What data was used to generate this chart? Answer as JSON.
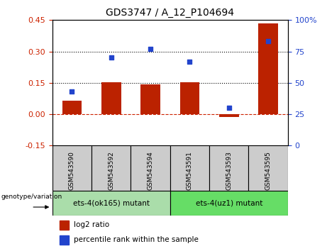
{
  "title": "GDS3747 / A_12_P104694",
  "samples": [
    "GSM543590",
    "GSM543592",
    "GSM543594",
    "GSM543591",
    "GSM543593",
    "GSM543595"
  ],
  "log2_ratio": [
    0.065,
    0.153,
    0.143,
    0.153,
    -0.015,
    0.435
  ],
  "percentile_rank": [
    43,
    70,
    77,
    67,
    30,
    83
  ],
  "ylim_left": [
    -0.15,
    0.45
  ],
  "ylim_right": [
    0,
    100
  ],
  "yticks_left": [
    -0.15,
    0.0,
    0.15,
    0.3,
    0.45
  ],
  "yticks_right": [
    0,
    25,
    50,
    75,
    100
  ],
  "hline_zero_color": "#cc2200",
  "hline_zero_style": "dashed",
  "hline_015_color": "black",
  "hline_015_style": "dotted",
  "hline_030_color": "black",
  "hline_030_style": "dotted",
  "bar_color": "#bb2200",
  "dot_color": "#2244cc",
  "bar_width": 0.5,
  "group1_label": "ets-4(ok165) mutant",
  "group2_label": "ets-4(uz1) mutant",
  "group1_indices": [
    0,
    1,
    2
  ],
  "group2_indices": [
    3,
    4,
    5
  ],
  "group1_color": "#aaddaa",
  "group2_color": "#66dd66",
  "genotype_label": "genotype/variation",
  "legend_bar_label": "log2 ratio",
  "legend_dot_label": "percentile rank within the sample",
  "axis_color_left": "#cc2200",
  "axis_color_right": "#2244cc",
  "sample_bg_color": "#cccccc",
  "plot_bg_color": "#ffffff",
  "tick_fontsize": 8,
  "label_fontsize": 7,
  "title_fontsize": 10
}
